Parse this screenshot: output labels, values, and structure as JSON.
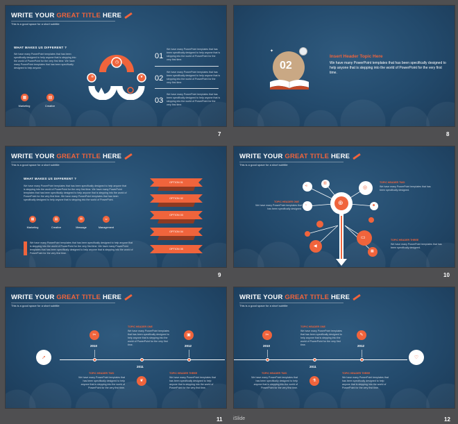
{
  "colors": {
    "accent": "#f0643c",
    "background": "#234a6c",
    "page_bg": "#4f4f51"
  },
  "common": {
    "title_pre": "WRITE YOUR ",
    "title_acc": "GREAT  TITLE",
    "title_post": " HERE",
    "subtitle": "This is a good space for a short subtitle"
  },
  "slide7": {
    "page": "7",
    "heading": "WHAT MAKES US DIFFERENT ?",
    "body": "We have many PowerPoint templates that has been specifically designed to help anyone that is stepping into the world of PowerPoint for the very first time. We have many PowerPoint templates that has been specifically designed to help anyone.",
    "btn1": "Marketing",
    "btn2": "Creative",
    "n1": "01",
    "n2": "02",
    "n3": "03",
    "t1": "We have many PowerPoint templates that has been specifically designed to help anyone that is stepping into the world of PowerPoint for the very first time.",
    "t2": "We have many PowerPoint templates that has been specifically designed to help anyone that is stepping into the world of PowerPoint for the very first time.",
    "t3": "We have many PowerPoint templates that has been specifically designed to help anyone that is stepping into the world of PowerPoint for the very first time.",
    "icon_left": "gear-icon",
    "icon_mid": "clock-icon",
    "icon_right": "leaf-icon"
  },
  "slide8": {
    "page": "8",
    "badge": "02",
    "heading": "Insert Header Topic Here",
    "body": "We have many PowerPoint templates that has been specifically designed to help anyone that is stepping into the world of PowerPoint for the very first time."
  },
  "slide9": {
    "page": "9",
    "heading": "WHAT MAKES US DIFFERENT ?",
    "body": "We have many PowerPoint templates that has been specifically designed to help anyone that is stepping into the world of PowerPoint for the very first time. We have many PowerPoint templates that has been specifically designed to help anyone that is stepping into the world of PowerPoint for the very first time. We have many PowerPoint templates that has been specifically designed to help anyone that is stepping into the world of PowerPoint.",
    "btn1": "Marketing",
    "btn2": "Creative",
    "btn3": "Message",
    "btn4": "Management",
    "quote": "We have many PowerPoint templates that has been specifically designed to help anyone that is stepping into the world of PowerPoint for the very first time. We have many PowerPoint templates that has been specifically designed to help anyone that is stepping into the world of PowerPoint for the very first time.",
    "options": [
      "OPTION 01",
      "OPTION 02",
      "OPTION 03",
      "OPTION 04",
      "OPTION 05"
    ]
  },
  "slide10": {
    "page": "10",
    "h1": "TOPIC HEADER ONE",
    "b1": "We have many PowerPoint templates that has been specifically designed.",
    "h2": "TOPIC HEADER TWO",
    "b2": "We have many PowerPoint templates that has been specifically designed.",
    "h3": "TOPIC HEADER THREE",
    "b3": "We have many PowerPoint templates that has been specifically designed."
  },
  "slide11": {
    "page": "11",
    "y1": "2010",
    "y2": "2011",
    "y3": "2012",
    "h1": "TOPIC HEADER ONE",
    "b1": "We have many PowerPoint templates that has been specifically designed to help anyone that is stepping into the world of PowerPoint for the very first time.",
    "h2": "TOPIC HEADER TWO",
    "b2": "We have many PowerPoint templates that has been specifically designed to help anyone that is stepping into the world of PowerPoint for the very first time.",
    "h3": "TOPIC HEADER THREE",
    "b3": "We have many PowerPoint templates that has been specifically designed to help anyone that is stepping into the world of PowerPoint for the very first time."
  },
  "slide12": {
    "page": "12",
    "y1": "2010",
    "y2": "2011",
    "y3": "2012",
    "h1": "TOPIC HEADER ONE",
    "b1": "We have many PowerPoint templates that has been specifically designed to help anyone that is stepping into the world of PowerPoint for the very first time.",
    "h2": "TOPIC HEADER TWO",
    "b2": "We have many PowerPoint templates that has been specifically designed to help anyone that is stepping into the world of PowerPoint for the very first time.",
    "h3": "TOPIC HEADER THREE",
    "b3": "We have many PowerPoint templates that has been specifically designed to help anyone that is stepping into the world of PowerPoint for the very first time."
  },
  "footer_mark": "iSlide"
}
